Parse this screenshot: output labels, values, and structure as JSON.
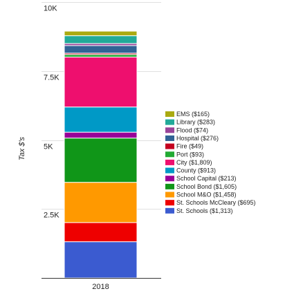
{
  "chart_data": {
    "type": "bar",
    "stacked": true,
    "title": "",
    "xlabel": "",
    "ylabel": "Tax $'s",
    "categories": [
      "2018"
    ],
    "ylim": [
      0,
      10000
    ],
    "yticks": [
      {
        "value": 2500,
        "label": "2.5K"
      },
      {
        "value": 5000,
        "label": "5K"
      },
      {
        "value": 7500,
        "label": "7.5K"
      },
      {
        "value": 10000,
        "label": "10K"
      }
    ],
    "grid": true,
    "legend_position": "right",
    "series": [
      {
        "name": "St. Schools ($1,313)",
        "values": [
          1313
        ],
        "color": "#3b5bd0"
      },
      {
        "name": "St. Schools McCleary ($695)",
        "values": [
          695
        ],
        "color": "#ee0000"
      },
      {
        "name": "School M&O ($1,458)",
        "values": [
          1458
        ],
        "color": "#ff9900"
      },
      {
        "name": "School Bond ($1,605)",
        "values": [
          1605
        ],
        "color": "#109618"
      },
      {
        "name": "School Capital ($213)",
        "values": [
          213
        ],
        "color": "#990099"
      },
      {
        "name": "County ($913)",
        "values": [
          913
        ],
        "color": "#0099c6"
      },
      {
        "name": "City ($1,809)",
        "values": [
          1809
        ],
        "color": "#ee0f6e"
      },
      {
        "name": "Port ($93)",
        "values": [
          93
        ],
        "color": "#22aa33"
      },
      {
        "name": "Fire ($49)",
        "values": [
          49
        ],
        "color": "#c40020"
      },
      {
        "name": "Hospital ($276)",
        "values": [
          276
        ],
        "color": "#316395"
      },
      {
        "name": "Flood ($74)",
        "values": [
          74
        ],
        "color": "#994499"
      },
      {
        "name": "Library ($283)",
        "values": [
          283
        ],
        "color": "#22aa99"
      },
      {
        "name": "EMS ($165)",
        "values": [
          165
        ],
        "color": "#aaaa11"
      }
    ]
  }
}
